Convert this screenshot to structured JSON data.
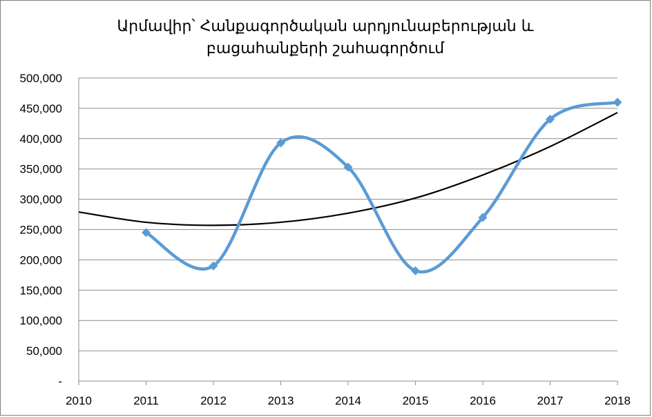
{
  "chart_data": {
    "type": "line",
    "title_lines": [
      "Արմավիր՝ Հանքագործական արդյունաբերության և",
      "բացահանքերի շահագործում"
    ],
    "x_ticks": [
      "2010",
      "2011",
      "2012",
      "2013",
      "2014",
      "2015",
      "2016",
      "2017",
      "2018"
    ],
    "y_ticks": [
      "-",
      "50,000",
      "100,000",
      "150,000",
      "200,000",
      "250,000",
      "300,000",
      "350,000",
      "400,000",
      "450,000",
      "500,000"
    ],
    "xlim": [
      2010,
      2018
    ],
    "ylim": [
      0,
      500000
    ],
    "grid": true,
    "legend": "none",
    "series": [
      {
        "x": [
          2011,
          2012,
          2013,
          2014,
          2015,
          2016,
          2017,
          2018
        ],
        "values": [
          245000,
          190000,
          393000,
          353000,
          182000,
          270000,
          432000,
          460000
        ],
        "color": "#5b9bd5",
        "marker": "diamond",
        "smooth": true
      }
    ],
    "trendline": {
      "type": "polynomial",
      "color": "#000000",
      "x": [
        2010,
        2011,
        2012,
        2013,
        2014,
        2015,
        2016,
        2017,
        2018
      ],
      "values": [
        279000,
        262000,
        257000,
        262000,
        277000,
        302000,
        340000,
        387000,
        443000
      ]
    }
  }
}
